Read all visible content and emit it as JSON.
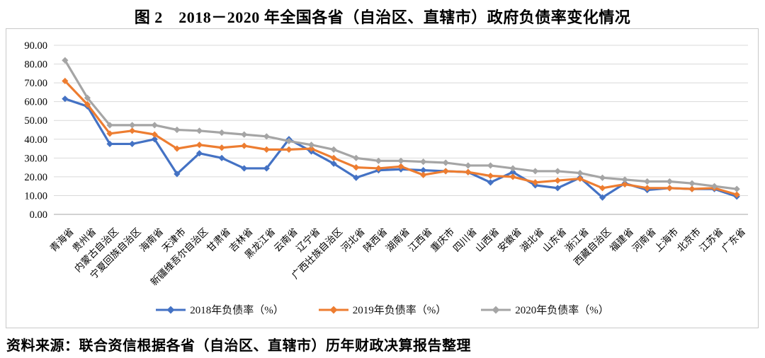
{
  "title": "图 2　2018－2020 年全国各省（自治区、直辖市）政府负债率变化情况",
  "source_note": "资料来源：联合资信根据各省（自治区、直辖市）历年财政决算报告整理",
  "colors": {
    "gridline": "#d9d9d9",
    "axis_line": "#a6a6a6",
    "chart_border": "#c9c9c9",
    "text": "#000000"
  },
  "y_axis": {
    "min": 0,
    "max": 90,
    "step": 10,
    "tick_labels": [
      "0.00",
      "10.00",
      "20.00",
      "30.00",
      "40.00",
      "50.00",
      "60.00",
      "70.00",
      "80.00",
      "90.00"
    ]
  },
  "chart_data": {
    "type": "line",
    "title": "图 2　2018－2020 年全国各省（自治区、直辖市）政府负债率变化情况",
    "xlabel": "",
    "ylabel": "",
    "ylim": [
      0,
      90
    ],
    "grid": true,
    "legend_position": "bottom",
    "marker": "diamond",
    "categories": [
      "青海省",
      "贵州省",
      "内蒙古自治区",
      "宁夏回族自治区",
      "海南省",
      "天津市",
      "新疆维吾尔自治区",
      "甘肃省",
      "吉林省",
      "黑龙江省",
      "云南省",
      "辽宁省",
      "广西壮族自治区",
      "河北省",
      "陕西省",
      "湖南省",
      "江西省",
      "重庆市",
      "四川省",
      "山西省",
      "安徽省",
      "湖北省",
      "山东省",
      "浙江省",
      "西藏自治区",
      "福建省",
      "河南省",
      "上海市",
      "北京市",
      "江苏省",
      "广东省"
    ],
    "series": [
      {
        "name": "2018年负债率（%）",
        "year": "2018",
        "color": "#4472c4",
        "values": [
          61.5,
          57.5,
          37.5,
          37.5,
          40.0,
          21.5,
          32.5,
          30.0,
          24.5,
          24.5,
          40.0,
          33.5,
          27.0,
          19.5,
          23.5,
          24.0,
          23.5,
          23.0,
          22.5,
          17.0,
          22.5,
          15.5,
          14.0,
          19.5,
          9.0,
          16.5,
          13.0,
          14.0,
          13.5,
          13.5,
          9.5
        ]
      },
      {
        "name": "2019年负债率（%）",
        "year": "2019",
        "color": "#ed7d31",
        "values": [
          71.0,
          58.5,
          43.0,
          44.5,
          42.5,
          35.0,
          37.0,
          35.5,
          36.5,
          34.5,
          34.5,
          35.0,
          30.0,
          25.0,
          24.5,
          25.5,
          21.0,
          23.0,
          22.5,
          20.5,
          20.0,
          17.0,
          18.0,
          19.0,
          14.0,
          16.0,
          14.0,
          14.0,
          13.5,
          14.0,
          10.5
        ]
      },
      {
        "name": "2020年负债率（%）",
        "year": "2020",
        "color": "#a5a5a5",
        "values": [
          82.0,
          62.0,
          47.5,
          47.5,
          47.5,
          45.0,
          44.5,
          43.5,
          42.5,
          41.5,
          39.0,
          37.0,
          34.5,
          30.0,
          28.5,
          28.5,
          28.0,
          27.5,
          26.0,
          26.0,
          24.5,
          23.0,
          23.0,
          22.0,
          19.5,
          18.5,
          17.5,
          17.5,
          16.5,
          15.0,
          13.5
        ]
      }
    ]
  }
}
